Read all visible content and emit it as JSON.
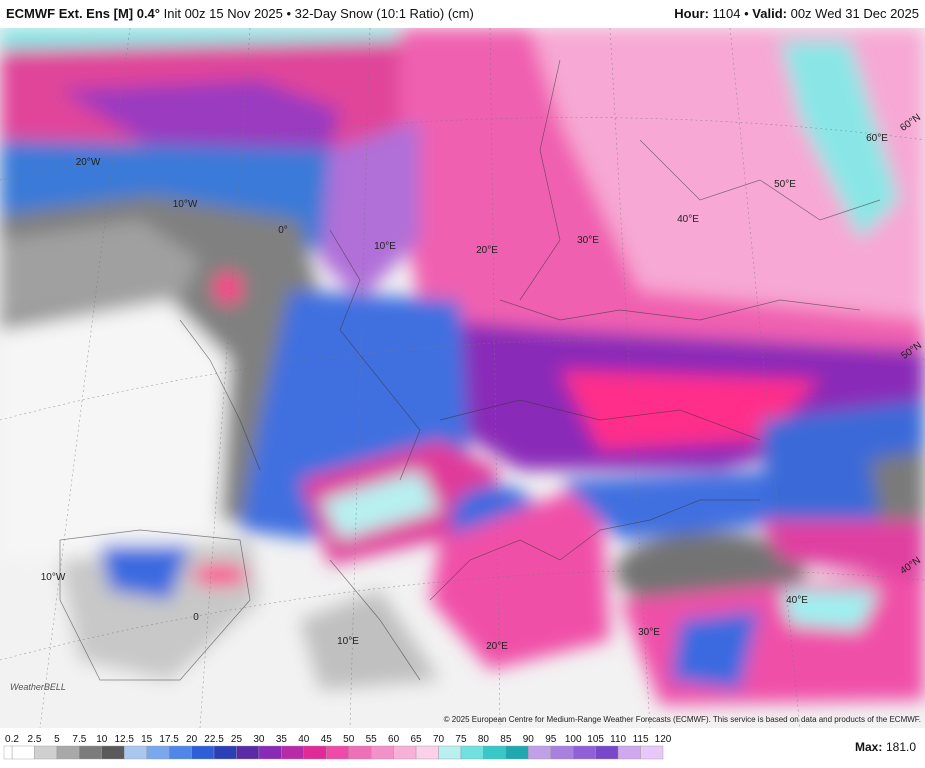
{
  "header": {
    "model": "ECMWF Ext. Ens [M] 0.4°",
    "product": "Init 00z 15 Nov 2025 • 32-Day Snow (10:1 Ratio) (cm)",
    "hour_label": "Hour:",
    "hour": "1104 •",
    "valid_label": "Valid:",
    "valid": "00z Wed 31 Dec 2025"
  },
  "map": {
    "labels": [
      "20°W",
      "10°W",
      "0°",
      "10°E",
      "20°E",
      "30°E",
      "40°E",
      "50°E",
      "60°E",
      "60°N",
      "50°N",
      "40°N",
      "10°W",
      "0",
      "10°E",
      "20°E",
      "30°E",
      "40°E"
    ],
    "logo": "WeatherBELL",
    "copyright": "© 2025 European Centre for Medium-Range Weather Forecasts (ECMWF). This service is based on data and products of the ECMWF."
  },
  "colorbar": {
    "ticks": [
      0.2,
      2.5,
      5,
      7.5,
      10,
      12.5,
      15,
      17.5,
      20,
      22.5,
      25,
      30,
      35,
      40,
      45,
      50,
      55,
      60,
      65,
      70,
      75,
      80,
      85,
      90,
      95,
      100,
      105,
      110,
      115,
      120
    ],
    "colors": [
      "#ffffff",
      "#d0d0d0",
      "#a8a8a8",
      "#7c7c7c",
      "#5a5a5a",
      "#a8c8f0",
      "#7aa8ee",
      "#4f86e8",
      "#2f5fd8",
      "#2a3fb8",
      "#5a2aa8",
      "#8a2ab8",
      "#b82aa8",
      "#e02a98",
      "#f04aa8",
      "#f070b8",
      "#f590c8",
      "#f8b0d8",
      "#fbd0e8",
      "#b8f0f0",
      "#70e0e0",
      "#38c8c8",
      "#20a8b0",
      "#c0a0e8",
      "#a880e0",
      "#9060d8",
      "#7848c8",
      "#d0a8f0",
      "#e8c8f8"
    ],
    "max_label": "Max:",
    "max_value": "181.0"
  }
}
